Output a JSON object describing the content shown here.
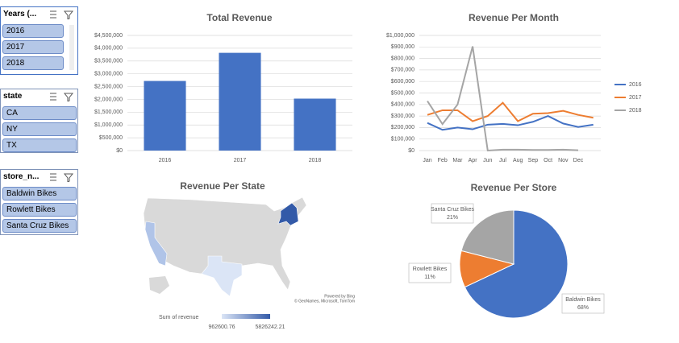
{
  "slicers": [
    {
      "title": "Years (...",
      "items": [
        "2016",
        "2017",
        "2018"
      ]
    },
    {
      "title": "state",
      "items": [
        "CA",
        "NY",
        "TX"
      ]
    },
    {
      "title": "store_n...",
      "items": [
        "Baldwin Bikes",
        "Rowlett Bikes",
        "Santa Cruz Bikes"
      ]
    }
  ],
  "chart_data": [
    {
      "type": "bar",
      "title": "Total Revenue",
      "categories": [
        "2016",
        "2017",
        "2018"
      ],
      "values": [
        2720000,
        3820000,
        2030000
      ],
      "color": "#4472c4",
      "grid": true,
      "ylim": [
        0,
        4500000
      ],
      "yticks": [
        {
          "value": 0,
          "label": "$0"
        },
        {
          "value": 500000,
          "label": "$500,000"
        },
        {
          "value": 1000000,
          "label": "$1,000,000"
        },
        {
          "value": 1500000,
          "label": "$1,500,000"
        },
        {
          "value": 2000000,
          "label": "$2,000,000"
        },
        {
          "value": 2500000,
          "label": "$2,500,000"
        },
        {
          "value": 3000000,
          "label": "$3,000,000"
        },
        {
          "value": 3500000,
          "label": "$3,500,000"
        },
        {
          "value": 4000000,
          "label": "$4,000,000"
        },
        {
          "value": 4500000,
          "label": "$4,500,000"
        }
      ]
    },
    {
      "type": "line",
      "title": "Revenue Per Month",
      "categories": [
        "Jan",
        "Feb",
        "Mar",
        "Apr",
        "Jun",
        "Jul",
        "Aug",
        "Sep",
        "Oct",
        "Nov",
        "Dec",
        null
      ],
      "series": [
        {
          "name": "2016",
          "color": "#4472c4",
          "values": [
            240000,
            180000,
            200000,
            185000,
            225000,
            232000,
            220000,
            250000,
            300000,
            235000,
            205000,
            225000
          ]
        },
        {
          "name": "2017",
          "color": "#ed7d31",
          "values": [
            310000,
            350000,
            350000,
            255000,
            300000,
            415000,
            255000,
            320000,
            325000,
            345000,
            310000,
            285000
          ]
        },
        {
          "name": "2018",
          "color": "#a5a5a5",
          "values": [
            430000,
            230000,
            400000,
            905000,
            0,
            8000,
            8000,
            5000,
            5000,
            8000,
            3000,
            null
          ]
        }
      ],
      "grid": true,
      "legend": "right",
      "ylim": [
        0,
        1000000
      ],
      "yticks": [
        {
          "value": 0,
          "label": "$0"
        },
        {
          "value": 100000,
          "label": "$100,000"
        },
        {
          "value": 200000,
          "label": "$200,000"
        },
        {
          "value": 300000,
          "label": "$300,000"
        },
        {
          "value": 400000,
          "label": "$400,000"
        },
        {
          "value": 500000,
          "label": "$500,000"
        },
        {
          "value": 600000,
          "label": "$600,000"
        },
        {
          "value": 700000,
          "label": "$700,000"
        },
        {
          "value": 800000,
          "label": "$800,000"
        },
        {
          "value": 900000,
          "label": "$900,000"
        },
        {
          "value": 1000000,
          "label": "$1,000,000"
        }
      ]
    },
    {
      "type": "map",
      "title": "Revenue Per State",
      "legend_title": "Sum of revenue",
      "scale": [
        962600.76,
        5826242.21
      ],
      "colors": [
        "#dbe5f6",
        "#335aa8"
      ],
      "attribution": [
        "Powered by Bing",
        "© GeoNames, Microsoft, TomTom"
      ]
    },
    {
      "type": "pie",
      "title": "Revenue Per Store",
      "categories": [
        "Baldwin Bikes",
        "Rowlett Bikes",
        "Santa Cruz Bikes"
      ],
      "values": [
        68,
        11,
        21
      ],
      "value_labels": [
        "68%",
        "11%",
        "21%"
      ],
      "colors": [
        "#4472c4",
        "#ed7d31",
        "#a5a5a5"
      ]
    }
  ]
}
